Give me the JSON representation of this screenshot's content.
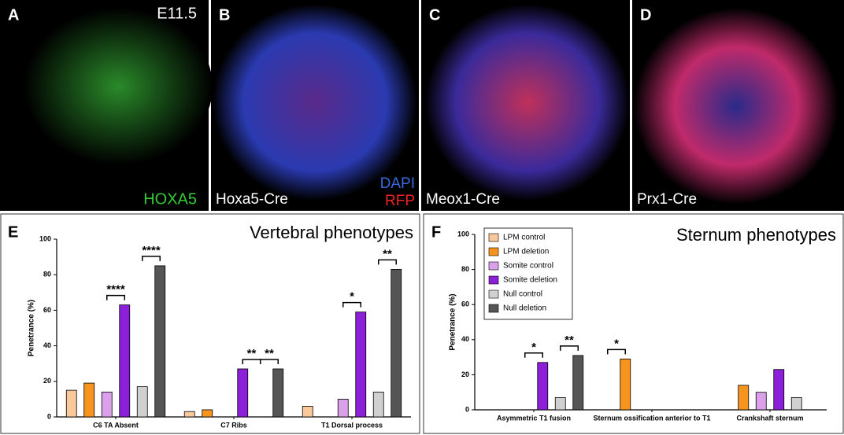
{
  "panels": [
    {
      "letter": "A",
      "labels": [
        "E11.5",
        "HOXA5"
      ]
    },
    {
      "letter": "B",
      "labels": [
        "Hoxa5-Cre",
        "DAPI",
        "RFP"
      ]
    },
    {
      "letter": "C",
      "labels": [
        "Meox1-Cre"
      ]
    },
    {
      "letter": "D",
      "labels": [
        "Prx1-Cre"
      ]
    }
  ],
  "chart_data": [
    {
      "type": "bar",
      "letter": "E",
      "title": "Vertebral phenotypes",
      "y_label": "Penetrance (%)",
      "categories": [
        "C6 TA Absent",
        "C7 Ribs",
        "T1 Dorsal process"
      ],
      "series": [
        {
          "color": "#f9c99c",
          "values": [
            15,
            3,
            6
          ]
        },
        {
          "color": "#f7941d",
          "values": [
            19,
            4,
            0
          ]
        },
        {
          "color": "#dba0ea",
          "values": [
            14,
            0,
            10
          ]
        },
        {
          "color": "#8c1fd8",
          "values": [
            63,
            27,
            59
          ]
        },
        {
          "color": "#d0d0d0",
          "values": [
            17,
            0,
            14
          ]
        },
        {
          "color": "#555555",
          "values": [
            85,
            27,
            83
          ]
        }
      ],
      "annotations": [
        "****",
        "****",
        "**",
        "**",
        "*",
        "**"
      ],
      "ylim": [
        0,
        100
      ],
      "yticks": [
        0,
        20,
        40,
        60,
        80,
        100
      ]
    },
    {
      "type": "bar",
      "letter": "F",
      "title": "Sternum phenotypes",
      "y_label": "Penetrance (%)",
      "categories": [
        "Asymmetric T1 fusion",
        "Sternum ossification anterior to T1",
        "Crankshaft sternum"
      ],
      "series": [
        {
          "name": "LPM control",
          "color": "#f9c99c",
          "values": [
            0,
            0,
            0
          ]
        },
        {
          "name": "LPM deletion",
          "color": "#f7941d",
          "values": [
            0,
            29,
            14
          ]
        },
        {
          "name": "Somite control",
          "color": "#dba0ea",
          "values": [
            0,
            0,
            10
          ]
        },
        {
          "name": "Somite deletion",
          "color": "#8c1fd8",
          "values": [
            27,
            0,
            23
          ]
        },
        {
          "name": "Null control",
          "color": "#d0d0d0",
          "values": [
            7,
            0,
            7
          ]
        },
        {
          "name": "Null deletion",
          "color": "#555555",
          "values": [
            31,
            0,
            0
          ]
        }
      ],
      "annotations": [
        "*",
        "**",
        "*"
      ],
      "legend": "top-left",
      "ylim": [
        0,
        100
      ],
      "yticks": [
        0,
        20,
        40,
        60,
        80,
        100
      ]
    }
  ]
}
